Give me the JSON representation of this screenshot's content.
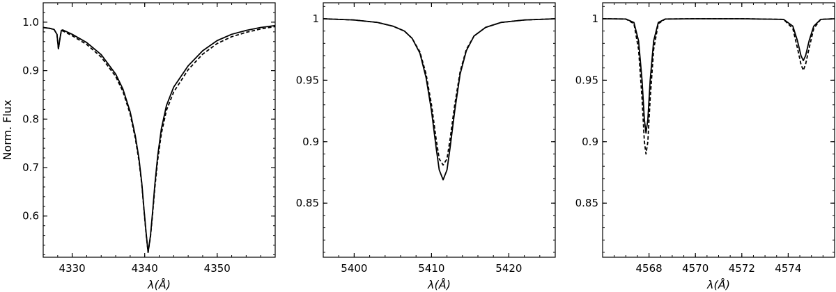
{
  "chart_data": [
    {
      "type": "line",
      "ylabel": "Norm. Flux",
      "xlabel": "λ(Å)",
      "xlim": [
        4326,
        4358
      ],
      "ylim": [
        0.515,
        1.04
      ],
      "x_ticks": [
        4330,
        4340,
        4350
      ],
      "y_ticks": [
        0.6,
        0.7,
        0.8,
        0.9,
        1.0
      ],
      "y_tick_labels": [
        "0.6",
        "0.7",
        "0.8",
        "0.9",
        "1.0"
      ],
      "grid": false,
      "series": [
        {
          "style": "solid",
          "x": [
            4326,
            4327,
            4327.5,
            4327.9,
            4328.1,
            4328.3,
            4328.5,
            4328.7,
            4330,
            4332,
            4334,
            4336,
            4337,
            4338,
            4338.7,
            4339.2,
            4339.6,
            4339.9,
            4340.2,
            4340.47,
            4340.8,
            4341.1,
            4341.4,
            4341.8,
            4342.3,
            4343,
            4344,
            4346,
            4348,
            4350,
            4352,
            4354,
            4356,
            4358
          ],
          "y": [
            0.989,
            0.987,
            0.985,
            0.975,
            0.945,
            0.965,
            0.983,
            0.984,
            0.975,
            0.958,
            0.933,
            0.893,
            0.862,
            0.815,
            0.766,
            0.72,
            0.668,
            0.615,
            0.565,
            0.525,
            0.56,
            0.61,
            0.665,
            0.725,
            0.78,
            0.828,
            0.866,
            0.91,
            0.941,
            0.962,
            0.975,
            0.983,
            0.989,
            0.993
          ]
        },
        {
          "style": "dashed",
          "x": [
            4326,
            4327,
            4327.5,
            4327.9,
            4328.1,
            4328.3,
            4328.5,
            4328.7,
            4330,
            4332,
            4334,
            4336,
            4337,
            4338,
            4338.7,
            4339.2,
            4339.6,
            4339.9,
            4340.2,
            4340.47,
            4340.8,
            4341.1,
            4341.4,
            4341.8,
            4342.3,
            4343,
            4344,
            4346,
            4348,
            4350,
            4352,
            4354,
            4356,
            4358
          ],
          "y": [
            0.989,
            0.987,
            0.985,
            0.975,
            0.945,
            0.965,
            0.982,
            0.982,
            0.972,
            0.954,
            0.928,
            0.888,
            0.857,
            0.81,
            0.761,
            0.715,
            0.665,
            0.612,
            0.562,
            0.525,
            0.557,
            0.605,
            0.658,
            0.716,
            0.77,
            0.818,
            0.856,
            0.902,
            0.934,
            0.956,
            0.97,
            0.979,
            0.986,
            0.991
          ]
        }
      ]
    },
    {
      "type": "line",
      "xlabel": "λ(Å)",
      "xlim": [
        5396,
        5426
      ],
      "ylim": [
        0.806,
        1.013
      ],
      "x_ticks": [
        5400,
        5410,
        5420
      ],
      "y_ticks": [
        0.85,
        0.9,
        0.95,
        1.0
      ],
      "y_tick_labels": [
        "0.85",
        "0.9",
        "0.95",
        "1"
      ],
      "grid": false,
      "series": [
        {
          "style": "solid",
          "x": [
            5396,
            5400,
            5403,
            5405,
            5406.5,
            5407.5,
            5408.5,
            5409.3,
            5410,
            5410.6,
            5411,
            5411.5,
            5412,
            5412.4,
            5413,
            5413.7,
            5414.5,
            5415.5,
            5417,
            5419,
            5422,
            5426
          ],
          "y": [
            1.0,
            0.999,
            0.997,
            0.994,
            0.99,
            0.984,
            0.972,
            0.952,
            0.925,
            0.895,
            0.877,
            0.869,
            0.877,
            0.895,
            0.925,
            0.955,
            0.974,
            0.986,
            0.993,
            0.997,
            0.999,
            1.0
          ]
        },
        {
          "style": "dashed",
          "x": [
            5396,
            5400,
            5403,
            5405,
            5406.5,
            5407.5,
            5408.5,
            5409.3,
            5410,
            5410.6,
            5411,
            5411.5,
            5412,
            5412.4,
            5413,
            5413.7,
            5414.5,
            5415.5,
            5417,
            5419,
            5422,
            5426
          ],
          "y": [
            1.0,
            0.999,
            0.997,
            0.994,
            0.99,
            0.984,
            0.973,
            0.955,
            0.93,
            0.902,
            0.886,
            0.881,
            0.886,
            0.902,
            0.93,
            0.957,
            0.975,
            0.986,
            0.993,
            0.997,
            0.999,
            1.0
          ]
        }
      ]
    },
    {
      "type": "line",
      "xlabel": "λ(Å)",
      "xlim": [
        4566,
        4576
      ],
      "ylim": [
        0.806,
        1.013
      ],
      "x_ticks": [
        4568,
        4570,
        4572,
        4574
      ],
      "y_ticks": [
        0.85,
        0.9,
        0.95,
        1.0
      ],
      "y_tick_labels": [
        "0.85",
        "0.9",
        "0.95",
        "1"
      ],
      "grid": false,
      "series": [
        {
          "style": "solid",
          "x": [
            4566,
            4567,
            4567.35,
            4567.55,
            4567.7,
            4567.8,
            4567.87,
            4567.95,
            4568.05,
            4568.2,
            4568.4,
            4568.7,
            4570,
            4572,
            4573.8,
            4574.2,
            4574.4,
            4574.55,
            4574.65,
            4574.75,
            4574.9,
            4575.1,
            4575.4,
            4576
          ],
          "y": [
            1.0,
            0.9998,
            0.997,
            0.982,
            0.95,
            0.918,
            0.907,
            0.918,
            0.95,
            0.982,
            0.997,
            0.9998,
            1.0,
            1.0,
            0.9995,
            0.994,
            0.982,
            0.97,
            0.966,
            0.97,
            0.982,
            0.994,
            0.9995,
            1.0
          ]
        },
        {
          "style": "dashed",
          "x": [
            4566,
            4567,
            4567.35,
            4567.55,
            4567.7,
            4567.8,
            4567.87,
            4567.95,
            4568.05,
            4568.2,
            4568.4,
            4568.7,
            4570,
            4572,
            4573.8,
            4574.2,
            4574.4,
            4574.55,
            4574.65,
            4574.75,
            4574.9,
            4575.1,
            4575.4,
            4576
          ],
          "y": [
            1.0,
            0.9998,
            0.996,
            0.975,
            0.935,
            0.9,
            0.89,
            0.9,
            0.935,
            0.975,
            0.996,
            0.9998,
            1.0,
            1.0,
            0.9995,
            0.992,
            0.976,
            0.963,
            0.958,
            0.963,
            0.976,
            0.992,
            0.9995,
            1.0
          ]
        }
      ]
    }
  ]
}
